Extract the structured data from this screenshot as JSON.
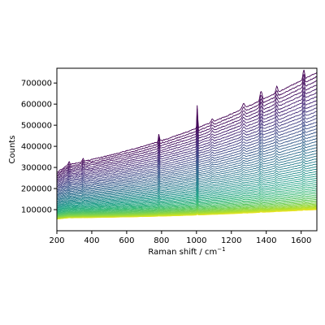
{
  "chart_data": {
    "type": "line",
    "title": "",
    "xlabel": "Raman shift / cm",
    "xlabel_superscript": "−1",
    "ylabel": "Counts",
    "xlim": [
      200,
      1690
    ],
    "ylim": [
      0,
      770000
    ],
    "x_ticks": [
      200,
      400,
      600,
      800,
      1000,
      1200,
      1400,
      1600
    ],
    "x_tick_labels": [
      "200",
      "400",
      "600",
      "800",
      "1000",
      "1200",
      "1400",
      "1600"
    ],
    "y_ticks": [
      100000,
      200000,
      300000,
      400000,
      500000,
      600000,
      700000
    ],
    "y_tick_labels": [
      "100000",
      "200000",
      "300000",
      "400000",
      "500000",
      "600000",
      "700000"
    ],
    "grid": false,
    "legend": "none",
    "colormap": "viridis",
    "colors": {
      "lowest_curve": "#fde725",
      "middle_curve": "#21918c",
      "highest_curve": "#440154"
    },
    "series_count": 60,
    "series_level_at_200": {
      "min": 60000,
      "max": 300000
    },
    "series_level_at_1690": {
      "min": 100000,
      "max": 750000
    },
    "peaks_cm-1": [
      270,
      350,
      785,
      1005,
      1090,
      1270,
      1370,
      1460,
      1615
    ]
  }
}
